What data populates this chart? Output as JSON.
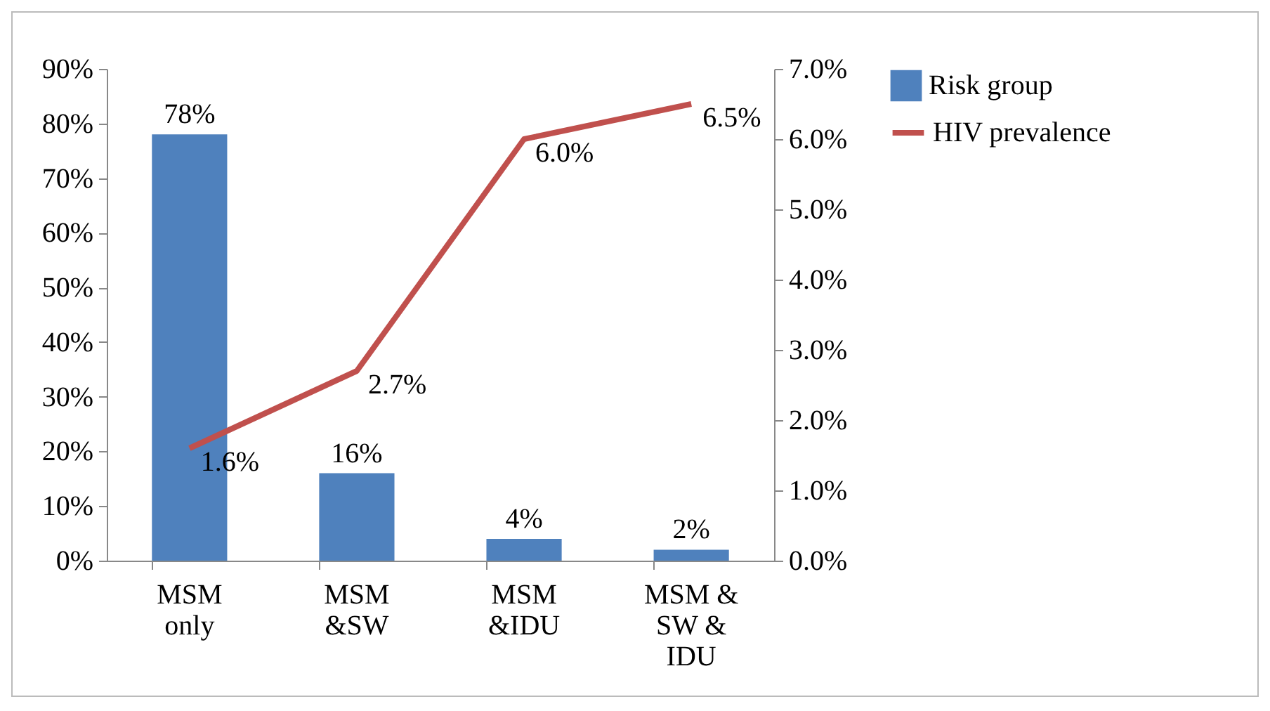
{
  "chart_data": {
    "type": "bar",
    "categories": [
      "MSM only",
      "MSM &SW",
      "MSM &IDU",
      "MSM & SW & IDU"
    ],
    "series": [
      {
        "name": "Risk group",
        "color": "#4f81bd",
        "values": [
          78,
          16,
          4,
          2
        ],
        "value_labels": [
          "78%",
          "16%",
          "4%",
          "2%"
        ]
      },
      {
        "name": "HIV prevalence",
        "type": "line",
        "axis": "y2",
        "color": "#c0504d",
        "values": [
          1.6,
          2.7,
          6.0,
          6.5
        ],
        "value_labels": [
          "1.6%",
          "2.7%",
          "6.0%",
          "6.5%"
        ]
      }
    ],
    "ylim": [
      0,
      90
    ],
    "yticks": [
      {
        "value": 0,
        "label": "0%"
      },
      {
        "value": 10,
        "label": "10%"
      },
      {
        "value": 20,
        "label": "20%"
      },
      {
        "value": 30,
        "label": "30%"
      },
      {
        "value": 40,
        "label": "40%"
      },
      {
        "value": 50,
        "label": "50%"
      },
      {
        "value": 60,
        "label": "60%"
      },
      {
        "value": 70,
        "label": "70%"
      },
      {
        "value": 80,
        "label": "80%"
      },
      {
        "value": 90,
        "label": "90%"
      }
    ],
    "y2lim": [
      0,
      7
    ],
    "y2ticks": [
      {
        "value": 0,
        "label": "0.0%"
      },
      {
        "value": 1,
        "label": "1.0%"
      },
      {
        "value": 2,
        "label": "2.0%"
      },
      {
        "value": 3,
        "label": "3.0%"
      },
      {
        "value": 4,
        "label": "4.0%"
      },
      {
        "value": 5,
        "label": "5.0%"
      },
      {
        "value": 6,
        "label": "6.0%"
      },
      {
        "value": 7,
        "label": "7.0%"
      }
    ],
    "grid": false,
    "legend": "right",
    "marker": "none",
    "line_style": "solid"
  }
}
